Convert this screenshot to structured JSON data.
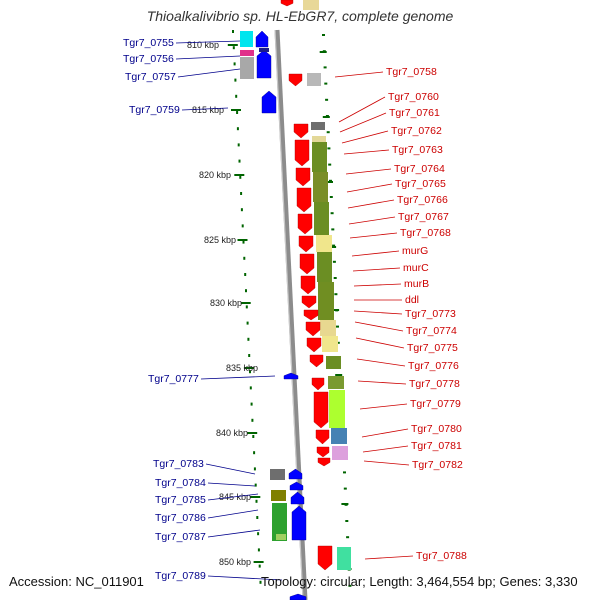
{
  "title": "Thioalkalivibrio sp. HL-EbGR7, complete genome",
  "footer": {
    "accession": "Accession: NC_011901",
    "summary": "Topology: circular; Length: 3,464,554 bp; Genes: 3,330"
  },
  "colors": {
    "left_label": "#00008b",
    "right_label": "#cc0000",
    "backbone": "#8c8c8c",
    "forward_gene": "#0000ff",
    "reverse_gene": "#ff0000",
    "tick": "#006400"
  },
  "scale": {
    "kbp_labels": [
      "810 kbp",
      "815 kbp",
      "820 kbp",
      "825 kbp",
      "830 kbp",
      "835 kbp",
      "840 kbp",
      "845 kbp",
      "850 kbp"
    ]
  },
  "left_labels": [
    "Tgr7_0755",
    "Tgr7_0756",
    "Tgr7_0757",
    "Tgr7_0759",
    "Tgr7_0777",
    "Tgr7_0783",
    "Tgr7_0784",
    "Tgr7_0785",
    "Tgr7_0786",
    "Tgr7_0787",
    "Tgr7_0789"
  ],
  "right_labels": [
    "Tgr7_0758",
    "Tgr7_0760",
    "Tgr7_0761",
    "Tgr7_0762",
    "Tgr7_0763",
    "Tgr7_0764",
    "Tgr7_0765",
    "Tgr7_0766",
    "Tgr7_0767",
    "Tgr7_0768",
    "murG",
    "murC",
    "murB",
    "ddl",
    "Tgr7_0773",
    "Tgr7_0774",
    "Tgr7_0775",
    "Tgr7_0776",
    "Tgr7_0778",
    "Tgr7_0779",
    "Tgr7_0780",
    "Tgr7_0781",
    "Tgr7_0782",
    "Tgr7_0788"
  ]
}
